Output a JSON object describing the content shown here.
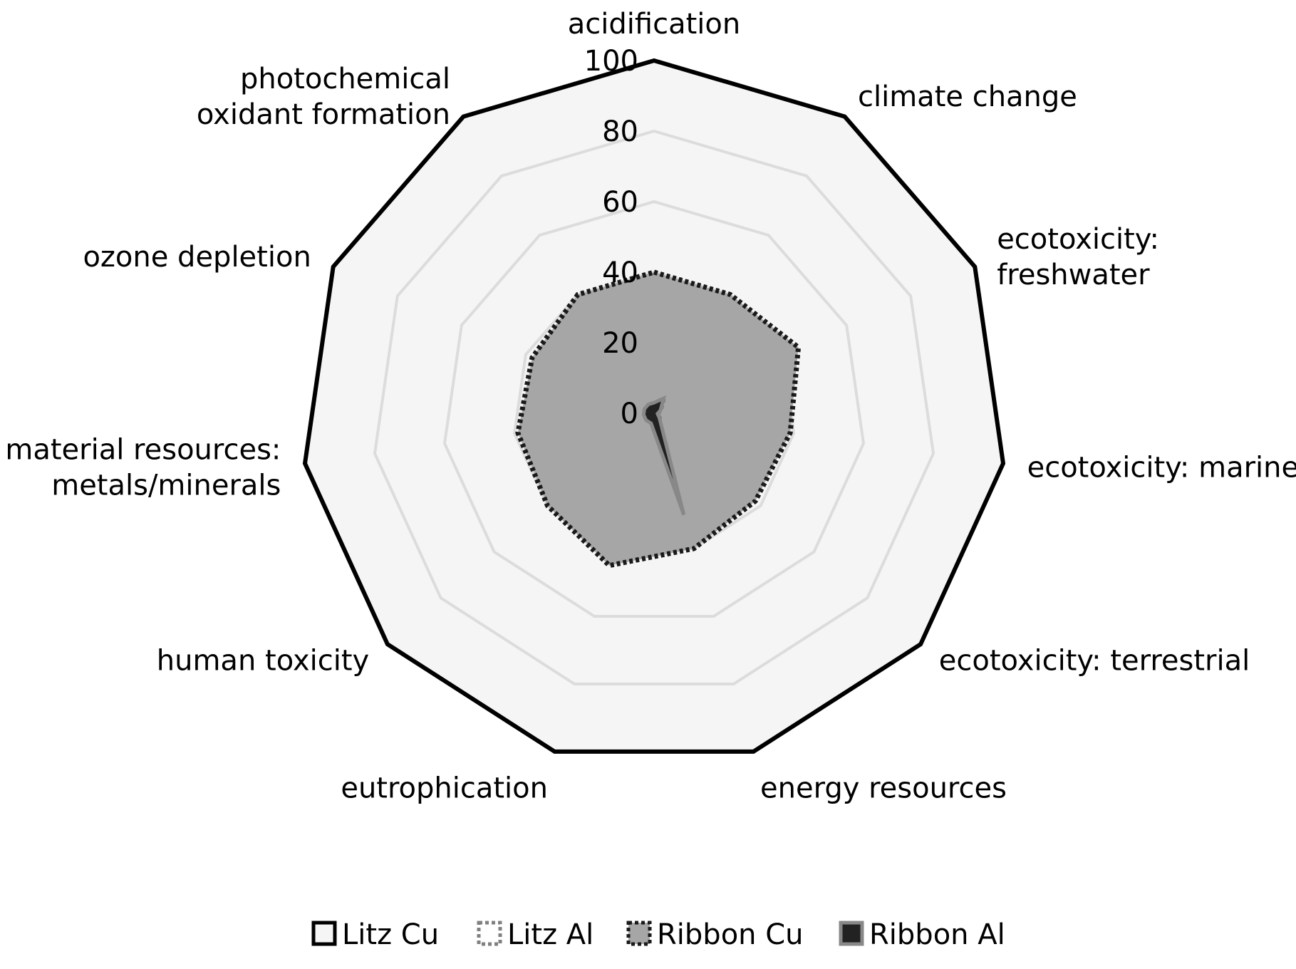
{
  "chart_data": {
    "type": "radar",
    "title": "",
    "categories": [
      "acidification",
      "climate change",
      "ecotoxicity: freshwater",
      "ecotoxicity: marine",
      "ecotoxicity: terrestrial",
      "energy resources",
      "eutrophication",
      "human toxicity",
      "material resources: metals/minerals",
      "ozone depletion",
      "photochemical oxidant formation"
    ],
    "category_lines": [
      [
        "acidification"
      ],
      [
        "climate change"
      ],
      [
        "ecotoxicity:",
        "freshwater"
      ],
      [
        "ecotoxicity: marine"
      ],
      [
        "ecotoxicity: terrestrial"
      ],
      [
        "energy resources"
      ],
      [
        "eutrophication"
      ],
      [
        "human toxicity"
      ],
      [
        "material resources:",
        "metals/minerals"
      ],
      [
        "ozone depletion"
      ],
      [
        "photochemical",
        "oxidant formation"
      ]
    ],
    "rlim": [
      0,
      100
    ],
    "ticks": [
      0,
      20,
      40,
      60,
      80,
      100
    ],
    "tick_labels": [
      "0",
      "20",
      "40",
      "60",
      "80",
      "100"
    ],
    "grid": true,
    "legend_position": "bottom",
    "series": [
      {
        "name": "Litz Cu",
        "values": [
          100,
          100,
          100,
          100,
          100,
          100,
          100,
          100,
          100,
          100,
          100
        ],
        "style": "solid",
        "fill": "#f5f5f5",
        "stroke": "#000000"
      },
      {
        "name": "Litz Al",
        "values": [
          2,
          5,
          2,
          1,
          2,
          5,
          1,
          2,
          2,
          1,
          1
        ],
        "style": "dotted",
        "fill": "#ffffff",
        "stroke": "#808080"
      },
      {
        "name": "Ribbon Cu",
        "values": [
          40,
          40,
          45,
          39,
          38,
          40,
          45,
          40,
          39,
          38,
          40
        ],
        "style": "dotted",
        "fill": "#a6a6a6",
        "stroke": "#1a1a1a"
      },
      {
        "name": "Ribbon Al",
        "values": [
          3,
          5,
          2,
          1,
          2,
          30,
          3,
          3,
          3,
          3,
          3
        ],
        "style": "solid",
        "fill": "#222222",
        "stroke": "#888888"
      }
    ]
  }
}
